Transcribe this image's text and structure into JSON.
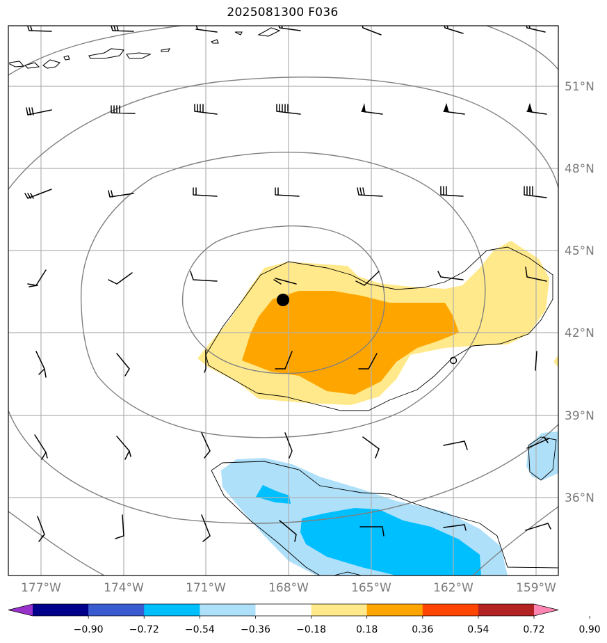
{
  "title": "2025081300 F036",
  "map": {
    "lat_labels": [
      "51°N",
      "48°N",
      "45°N",
      "42°N",
      "39°N",
      "36°N"
    ],
    "lon_labels": [
      "177°W",
      "174°W",
      "171°W",
      "168°W",
      "165°W",
      "162°W",
      "159°W"
    ],
    "lon_values": [
      -177,
      -174,
      -171,
      -168,
      -165,
      -162,
      -159
    ],
    "lat_values": [
      51,
      48,
      45,
      42,
      39,
      36
    ],
    "lon_range": [
      -178.2,
      -158.1
    ],
    "lat_range": [
      33.0,
      53.0
    ],
    "marker": {
      "type": "storm-center",
      "lon": -168.2,
      "lat": 43.15
    },
    "marker_open": {
      "type": "open-circle",
      "lon": -162.0,
      "lat": 41.0
    }
  },
  "colorbar": {
    "labels": [
      "−0.90",
      "−0.72",
      "−0.54",
      "−0.36",
      "−0.18",
      "0.18",
      "0.36",
      "0.54",
      "0.72",
      "0.90"
    ],
    "colors": [
      "#9932cc",
      "#00008b",
      "#3a5bd0",
      "#00bfff",
      "#aee0fa",
      "#ffffff",
      "#ffe98a",
      "#ffa500",
      "#ff4500",
      "#b22222",
      "#ff85b3"
    ],
    "extend": "both"
  },
  "colors": {
    "grid": "#b0b0b0",
    "contour": "#808080",
    "coast": "#000000",
    "label_gray": "#7a7a7a"
  }
}
